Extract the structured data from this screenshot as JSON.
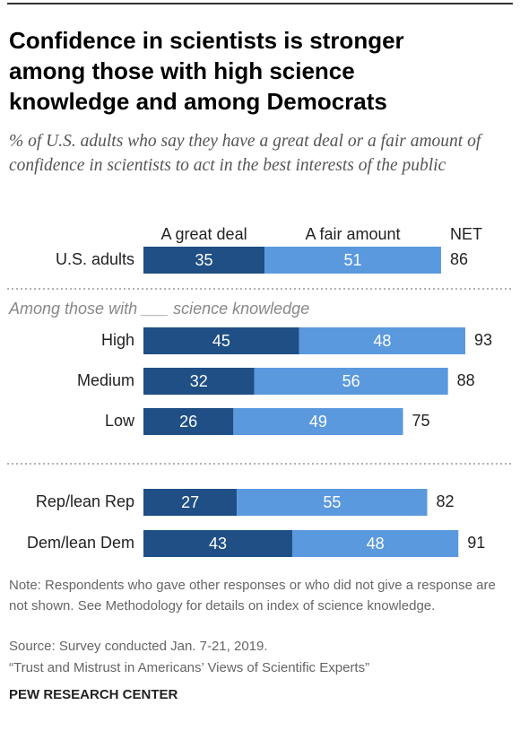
{
  "chart_data": {
    "type": "stacked-bar",
    "title": "Confidence in scientists is stronger among those with high science knowledge and among Democrats",
    "subtitle": "% of U.S. adults who say they have a great deal or a fair amount of confidence in scientists to act in the best interests of the public",
    "group_label": "Among those with ___ science knowledge",
    "categories": [
      "U.S. adults",
      "High",
      "Medium",
      "Low",
      "Rep/lean Rep",
      "Dem/lean Dem"
    ],
    "series": [
      {
        "name": "A great deal",
        "color": "#1f4f85",
        "values": [
          35,
          45,
          32,
          26,
          27,
          43
        ]
      },
      {
        "name": "A fair amount",
        "color": "#5a99de",
        "values": [
          51,
          48,
          56,
          49,
          55,
          48
        ]
      }
    ],
    "net": {
      "name": "NET",
      "values": [
        86,
        93,
        88,
        75,
        82,
        91
      ]
    },
    "note": "Note: Respondents who gave other responses or who did not give a response are not shown. See Methodology for details on index of science knowledge.",
    "source": "Source: Survey conducted Jan. 7-21, 2019.",
    "report": "“Trust and Mistrust in Americans’ Views of Scientific Experts”",
    "credit": "PEW RESEARCH CENTER"
  }
}
